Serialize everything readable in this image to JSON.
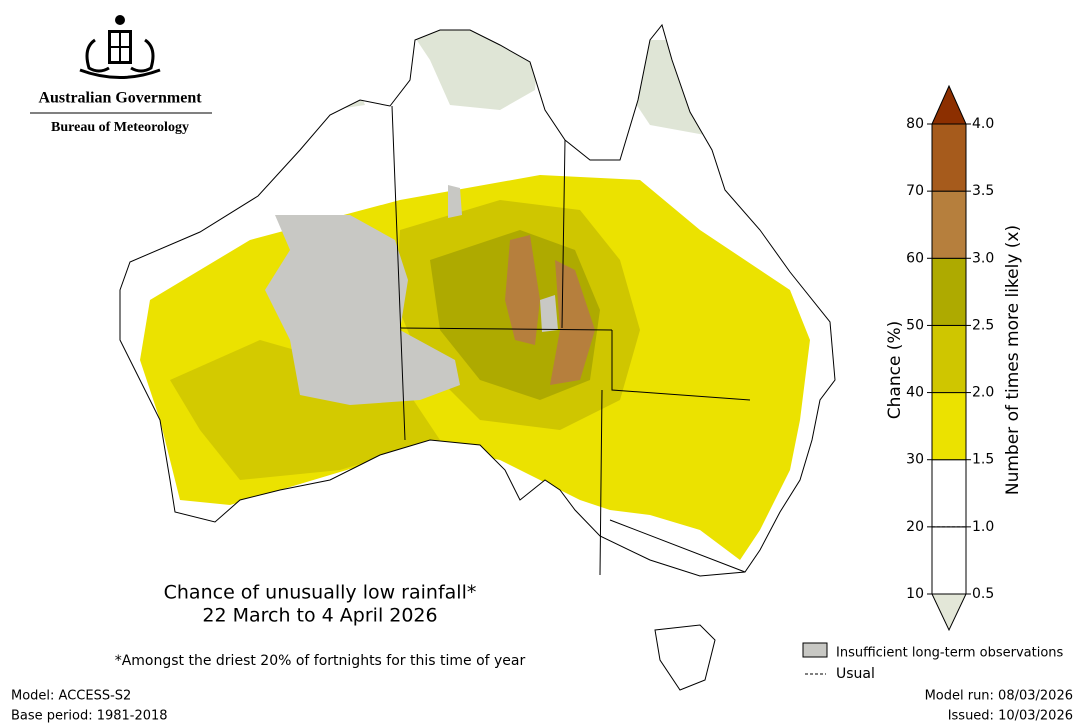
{
  "header": {
    "government": "Australian Government",
    "agency": "Bureau of Meteorology"
  },
  "title": {
    "line1": "Chance of unusually low rainfall*",
    "line2": "22 March to 4 April 2026"
  },
  "footnote": "*Amongst the driest 20% of fortnights for this time of year",
  "colorbar": {
    "chance_label": "Chance (%)",
    "likely_label": "Number of times more likely (x)",
    "chance_ticks": [
      10,
      20,
      30,
      40,
      50,
      60,
      70,
      80
    ],
    "likely_ticks": [
      0.5,
      {
        "value": 1,
        "label": "1.0"
      },
      1.5,
      {
        "value": 2,
        "label": "2.0"
      },
      2.5,
      {
        "value": 3,
        "label": "3.0"
      },
      3.5,
      {
        "value": 4,
        "label": "4.0"
      }
    ],
    "band_colors": [
      "#ffffff",
      "#ffffff",
      "#ebe200",
      "#cfc600",
      "#aeaa00",
      "#b67f3d",
      "#a65b1c"
    ],
    "over_color": "#8c2f00",
    "under_color": "#e3e7d8"
  },
  "legend": {
    "insufficient": "Insufficient long-term observations",
    "usual": "Usual"
  },
  "footer": {
    "model": "Model: ACCESS-S2",
    "base_period": "Base period: 1981-2018",
    "model_run": "Model run: 08/03/2026",
    "issued": "Issued: 10/03/2026"
  }
}
